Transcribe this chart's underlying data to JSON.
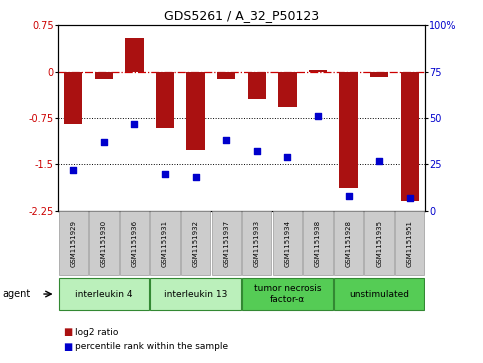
{
  "title": "GDS5261 / A_32_P50123",
  "samples": [
    "GSM1151929",
    "GSM1151930",
    "GSM1151936",
    "GSM1151931",
    "GSM1151932",
    "GSM1151937",
    "GSM1151933",
    "GSM1151934",
    "GSM1151938",
    "GSM1151928",
    "GSM1151935",
    "GSM1151951"
  ],
  "log2_ratio": [
    -0.85,
    -0.12,
    0.55,
    -0.92,
    -1.27,
    -0.12,
    -0.45,
    -0.58,
    0.02,
    -1.88,
    -0.08,
    -2.1
  ],
  "percentile": [
    22,
    37,
    47,
    20,
    18,
    38,
    32,
    29,
    51,
    8,
    27,
    7
  ],
  "agents": [
    {
      "label": "interleukin 4",
      "samples": [
        0,
        1,
        2
      ],
      "color": "#bbf0bb"
    },
    {
      "label": "interleukin 13",
      "samples": [
        3,
        4,
        5
      ],
      "color": "#bbf0bb"
    },
    {
      "label": "tumor necrosis\nfactor-α",
      "samples": [
        6,
        7,
        8
      ],
      "color": "#55cc55"
    },
    {
      "label": "unstimulated",
      "samples": [
        9,
        10,
        11
      ],
      "color": "#55cc55"
    }
  ],
  "ylim_left": [
    -2.25,
    0.75
  ],
  "ylim_right": [
    0,
    100
  ],
  "yticks_left": [
    0.75,
    0,
    -0.75,
    -1.5,
    -2.25
  ],
  "yticks_right": [
    100,
    75,
    50,
    25,
    0
  ],
  "bar_color": "#aa1111",
  "scatter_color": "#0000cc",
  "hline_zero_color": "#cc0000",
  "hline_dotted_color": "#000000",
  "legend_log2": "log2 ratio",
  "legend_pct": "percentile rank within the sample"
}
